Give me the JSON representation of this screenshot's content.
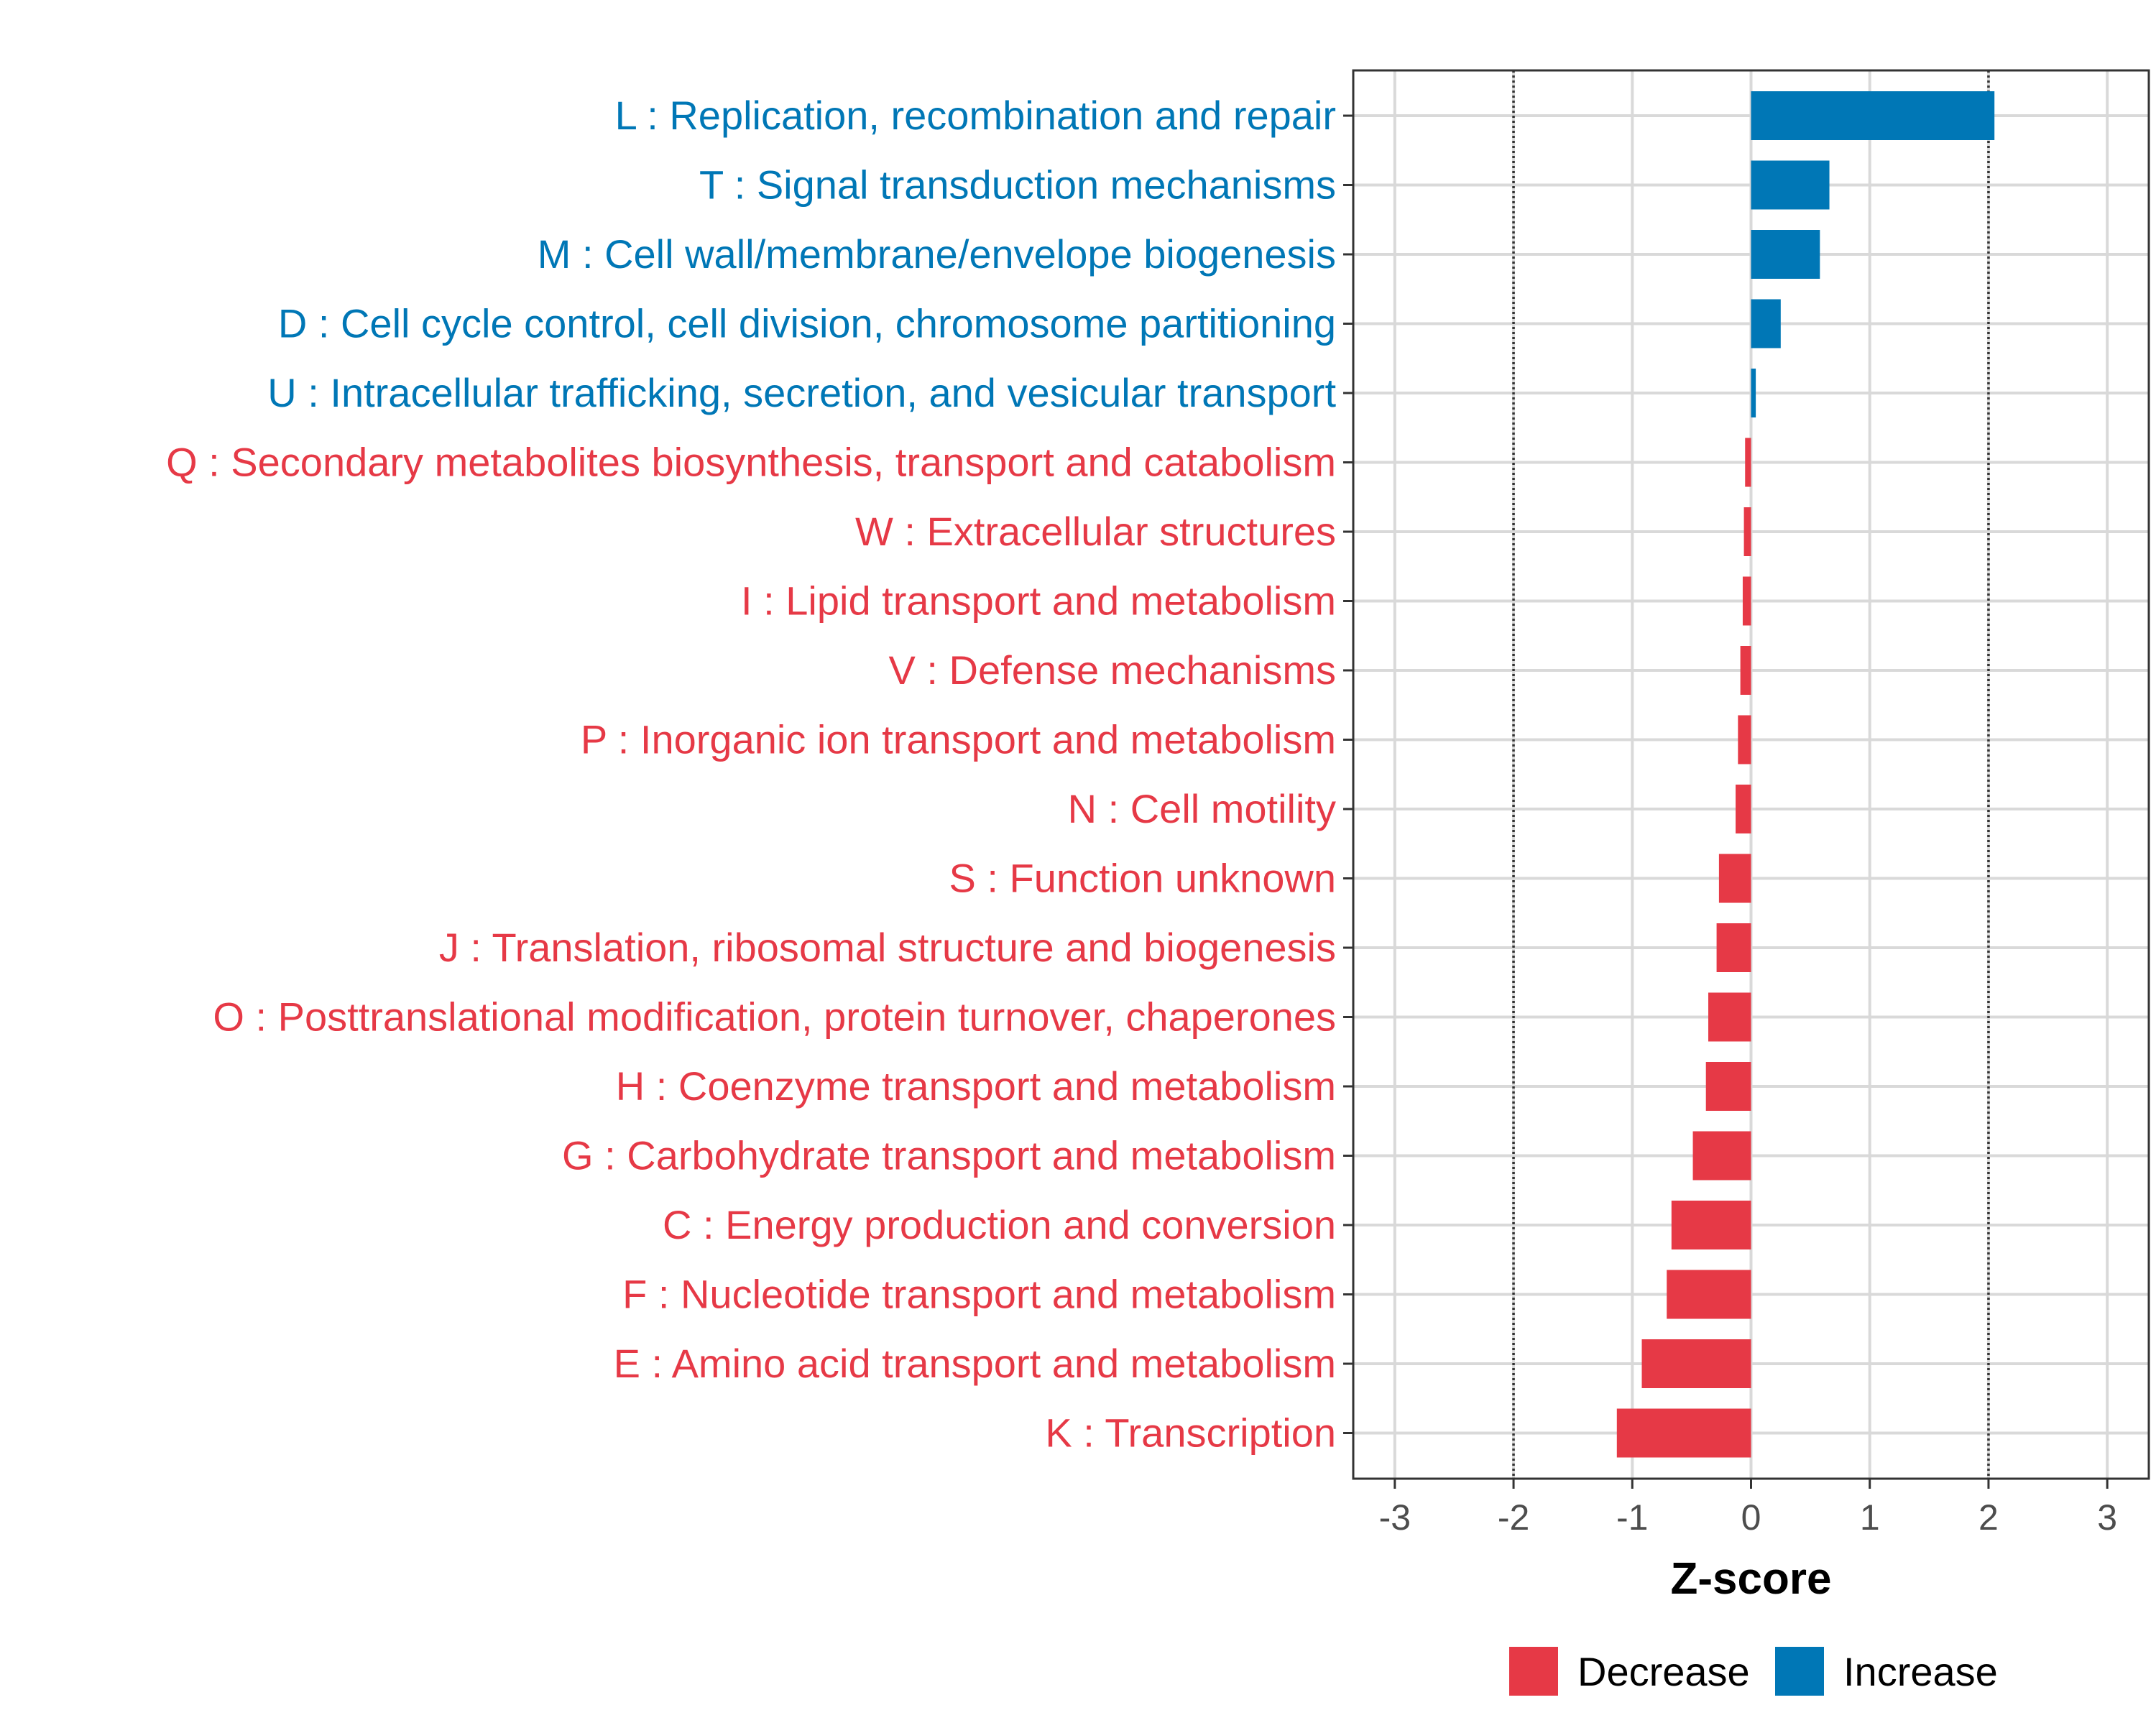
{
  "chart_data": {
    "type": "bar",
    "orientation": "horizontal",
    "title": "",
    "xlabel": "Z-score",
    "ylabel": "",
    "xlim": [
      -3.35,
      3.35
    ],
    "x_ticks": [
      -3,
      -2,
      -1,
      0,
      1,
      2,
      3
    ],
    "x_tick_labels": [
      "-3",
      "-2",
      "-1",
      "0",
      "1",
      "2",
      "3"
    ],
    "reference_lines": [
      -2,
      2
    ],
    "grid": true,
    "legend_position": "bottom",
    "colors": {
      "Decrease": "#E63946",
      "Increase": "#0077B6"
    },
    "legend": [
      {
        "label": "Decrease",
        "color": "#E63946"
      },
      {
        "label": "Increase",
        "color": "#0077B6"
      }
    ],
    "categories": [
      {
        "label": "L : Replication, recombination and repair",
        "value": 2.05,
        "group": "Increase"
      },
      {
        "label": "T : Signal transduction mechanisms",
        "value": 0.66,
        "group": "Increase"
      },
      {
        "label": "M : Cell wall/membrane/envelope biogenesis",
        "value": 0.58,
        "group": "Increase"
      },
      {
        "label": "D : Cell cycle control, cell division, chromosome partitioning",
        "value": 0.25,
        "group": "Increase"
      },
      {
        "label": "U : Intracellular trafficking, secretion, and vesicular transport",
        "value": 0.04,
        "group": "Increase"
      },
      {
        "label": "Q : Secondary metabolites biosynthesis, transport and catabolism",
        "value": -0.05,
        "group": "Decrease"
      },
      {
        "label": "W : Extracellular structures",
        "value": -0.06,
        "group": "Decrease"
      },
      {
        "label": "I : Lipid transport and metabolism",
        "value": -0.07,
        "group": "Decrease"
      },
      {
        "label": "V : Defense mechanisms",
        "value": -0.09,
        "group": "Decrease"
      },
      {
        "label": "P : Inorganic ion transport and metabolism",
        "value": -0.11,
        "group": "Decrease"
      },
      {
        "label": "N : Cell motility",
        "value": -0.13,
        "group": "Decrease"
      },
      {
        "label": "S : Function unknown",
        "value": -0.27,
        "group": "Decrease"
      },
      {
        "label": "J : Translation, ribosomal structure and biogenesis",
        "value": -0.29,
        "group": "Decrease"
      },
      {
        "label": "O : Posttranslational modification, protein turnover, chaperones",
        "value": -0.36,
        "group": "Decrease"
      },
      {
        "label": "H : Coenzyme transport and metabolism",
        "value": -0.38,
        "group": "Decrease"
      },
      {
        "label": "G : Carbohydrate transport and metabolism",
        "value": -0.49,
        "group": "Decrease"
      },
      {
        "label": "C : Energy production and conversion",
        "value": -0.67,
        "group": "Decrease"
      },
      {
        "label": "F : Nucleotide transport and metabolism",
        "value": -0.71,
        "group": "Decrease"
      },
      {
        "label": "E : Amino acid transport and metabolism",
        "value": -0.92,
        "group": "Decrease"
      },
      {
        "label": "K : Transcription",
        "value": -1.13,
        "group": "Decrease"
      }
    ]
  }
}
